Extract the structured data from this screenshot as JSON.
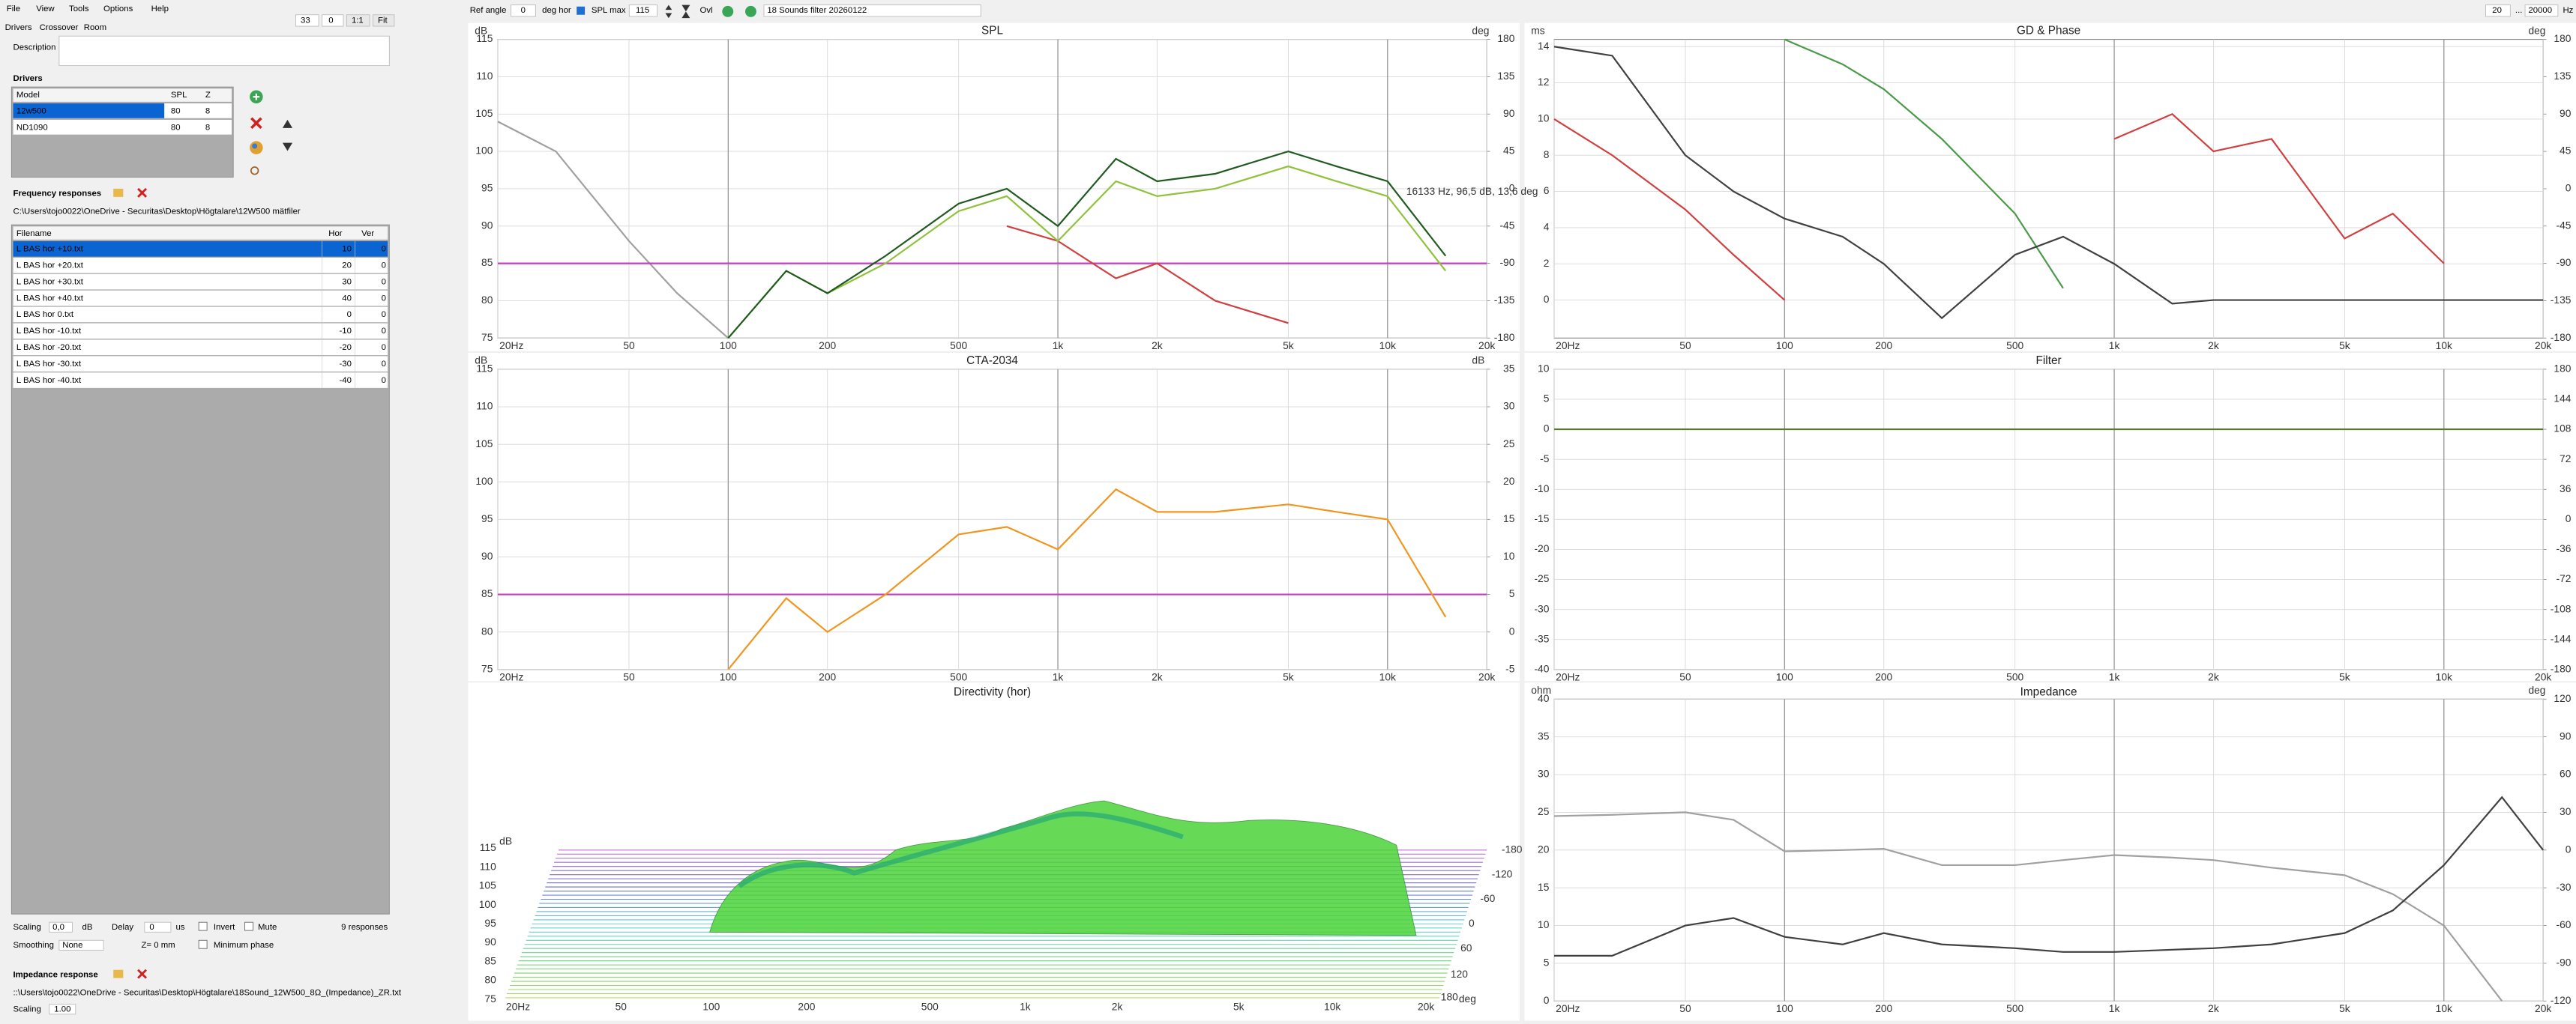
{
  "menu": [
    "File",
    "View",
    "Tools",
    "Options",
    "Help"
  ],
  "toolbar": {
    "zoom": "33",
    "offset": "0",
    "ratio": "1:1",
    "fit": "Fit",
    "ref_angle_label": "Ref angle",
    "ref_angle": "0",
    "deg_hor": "deg hor",
    "spl_max_label": "SPL max",
    "spl_max": "115",
    "ovl": "Ovl",
    "project": "18 Sounds filter 20260122",
    "f_min": "20",
    "f_sep": "...",
    "f_max": "20000",
    "hz": "Hz"
  },
  "tabs": [
    "Drivers",
    "Crossover",
    "Room"
  ],
  "description_label": "Description",
  "drivers": {
    "title": "Drivers",
    "columns": [
      "Model",
      "SPL",
      "Z"
    ],
    "rows": [
      [
        "12w500",
        "80",
        "8"
      ],
      [
        "ND1090",
        "80",
        "8"
      ]
    ]
  },
  "frequency_responses": {
    "title": "Frequency responses",
    "path": "C:\\Users\\tojo0022\\OneDrive - Securitas\\Desktop\\Högtalare\\12W500 mätfiler",
    "columns": [
      "Filename",
      "Hor",
      "Ver"
    ],
    "rows": [
      [
        "L BAS hor +10.txt",
        "10",
        "0"
      ],
      [
        "L BAS hor +20.txt",
        "20",
        "0"
      ],
      [
        "L BAS hor +30.txt",
        "30",
        "0"
      ],
      [
        "L BAS hor +40.txt",
        "40",
        "0"
      ],
      [
        "L BAS hor 0.txt",
        "0",
        "0"
      ],
      [
        "L BAS hor -10.txt",
        "-10",
        "0"
      ],
      [
        "L BAS hor -20.txt",
        "-20",
        "0"
      ],
      [
        "L BAS hor -30.txt",
        "-30",
        "0"
      ],
      [
        "L BAS hor -40.txt",
        "-40",
        "0"
      ]
    ]
  },
  "settings": {
    "scaling_label": "Scaling",
    "scaling": "0,0",
    "db": "dB",
    "delay_label": "Delay",
    "delay": "0",
    "us": "us",
    "invert": "Invert",
    "mute": "Mute",
    "count": "9 responses",
    "smoothing_label": "Smoothing",
    "smoothing": "None",
    "z": "Z= 0 mm",
    "min_phase": "Minimum phase"
  },
  "impedance_response": {
    "title": "Impedance response",
    "path": "::\\Users\\tojo0022\\OneDrive - Securitas\\Desktop\\Högtalare\\18Sound_12W500_8Ω_(Impedance)_ZR.txt",
    "scaling_label": "Scaling",
    "scaling": "1.00"
  },
  "plots": [
    {
      "title": "SPL",
      "unit_left": "dB",
      "unit_right": "deg",
      "annotation": "16133 Hz, 96,5 dB, 13,6 deg",
      "x": [
        20,
        30,
        50,
        70,
        100,
        150,
        200,
        300,
        500,
        700,
        1000,
        1500,
        2000,
        3000,
        5000,
        7000,
        10000,
        15000,
        20000
      ],
      "xlim": [
        20,
        20000
      ],
      "xticks": [
        {
          "value": 20,
          "label": "20Hz"
        },
        50,
        100,
        200,
        500,
        {
          "value": 1000,
          "label": "1k"
        },
        {
          "value": 2000,
          "label": "2k"
        },
        {
          "value": 5000,
          "label": "5k"
        },
        {
          "value": 10000,
          "label": "10k"
        },
        {
          "value": 20000,
          "label": "20k"
        }
      ],
      "ylim": [
        75,
        115
      ],
      "yticks": [
        75,
        80,
        85,
        90,
        95,
        100,
        105,
        110,
        115
      ],
      "y2lim": [
        -180,
        180
      ],
      "y2ticks": [
        -180,
        -135,
        -90,
        -45,
        0,
        45,
        90,
        135,
        180
      ],
      "series": [
        {
          "color": "#a0a0a0",
          "values": [
            104,
            100,
            88,
            81,
            75,
            null,
            null,
            null,
            null,
            null,
            null,
            null,
            null,
            null,
            null,
            null,
            null,
            null,
            null
          ]
        },
        {
          "color": "#c040c0",
          "values": [
            85,
            85,
            85,
            85,
            85,
            85,
            85,
            85,
            85,
            85,
            85,
            85,
            85,
            85,
            85,
            85,
            85,
            85,
            85
          ]
        },
        {
          "color": "#d04040",
          "values": [
            null,
            null,
            null,
            null,
            null,
            null,
            null,
            null,
            null,
            90,
            88,
            83,
            85,
            80,
            77,
            null,
            null,
            null,
            null
          ]
        },
        {
          "color": "#8fc23a",
          "values": [
            null,
            null,
            null,
            null,
            75,
            84,
            81,
            85,
            92,
            94,
            88,
            96,
            94,
            95,
            98,
            96,
            94,
            84,
            null
          ]
        },
        {
          "color": "#1f5a1f",
          "values": [
            null,
            null,
            null,
            null,
            75,
            84,
            81,
            86,
            93,
            95,
            90,
            99,
            96,
            97,
            100,
            98,
            96,
            86,
            null
          ]
        }
      ]
    },
    {
      "title": "GD & Phase",
      "unit_left": "ms",
      "unit_right": "deg",
      "x": [
        20,
        30,
        50,
        70,
        100,
        150,
        200,
        300,
        500,
        700,
        1000,
        1500,
        2000,
        3000,
        5000,
        7000,
        10000,
        15000,
        20000
      ],
      "xlim": [
        20,
        20000
      ],
      "xticks": [
        {
          "value": 20,
          "label": "20Hz"
        },
        50,
        100,
        200,
        500,
        {
          "value": 1000,
          "label": "1k"
        },
        {
          "value": 2000,
          "label": "2k"
        },
        {
          "value": 5000,
          "label": "5k"
        },
        {
          "value": 10000,
          "label": "10k"
        },
        {
          "value": 20000,
          "label": "20k"
        }
      ],
      "ylim": [
        -2.1,
        14.4
      ],
      "yticks": [
        0,
        2,
        4,
        6,
        8,
        10,
        12,
        14
      ],
      "y2lim": [
        -180,
        180
      ],
      "y2ticks": [
        -180,
        -135,
        -90,
        -45,
        0,
        45,
        90,
        135,
        180
      ],
      "series": [
        {
          "color": "#d04040",
          "values": [
            10,
            8,
            5,
            2.5,
            0,
            null,
            null,
            null,
            null,
            null,
            null,
            null,
            null,
            null,
            null,
            null,
            null,
            null,
            null
          ]
        },
        {
          "color": "#d04040",
          "axis": "y2",
          "values": [
            null,
            null,
            null,
            null,
            null,
            null,
            null,
            null,
            null,
            null,
            60,
            90,
            45,
            60,
            -60,
            -30,
            -90,
            null,
            null
          ]
        },
        {
          "color": "#4a9a4a",
          "axis": "y2",
          "values": [
            null,
            null,
            null,
            null,
            180,
            150,
            120,
            60,
            -30,
            -120,
            null,
            null,
            null,
            null,
            null,
            null,
            null,
            null,
            null
          ]
        },
        {
          "color": "#404040",
          "values": [
            14,
            13.5,
            8,
            6,
            4.5,
            3.5,
            2,
            -1,
            2.5,
            3.5,
            2,
            -0.2,
            0,
            0,
            0,
            0,
            0,
            0,
            0
          ]
        }
      ]
    },
    {
      "title": "CTA-2034",
      "unit_left": "dB",
      "unit_right": "dB",
      "x": [
        20,
        30,
        50,
        70,
        100,
        150,
        200,
        300,
        500,
        700,
        1000,
        1500,
        2000,
        3000,
        5000,
        7000,
        10000,
        15000,
        20000
      ],
      "xlim": [
        20,
        20000
      ],
      "xticks": [
        {
          "value": 20,
          "label": "20Hz"
        },
        50,
        100,
        200,
        500,
        {
          "value": 1000,
          "label": "1k"
        },
        {
          "value": 2000,
          "label": "2k"
        },
        {
          "value": 5000,
          "label": "5k"
        },
        {
          "value": 10000,
          "label": "10k"
        },
        {
          "value": 20000,
          "label": "20k"
        }
      ],
      "ylim": [
        75,
        115
      ],
      "yticks": [
        75,
        80,
        85,
        90,
        95,
        100,
        105,
        110,
        115
      ],
      "y2lim": [
        -5,
        35
      ],
      "y2ticks": [
        -5,
        0,
        5,
        10,
        15,
        20,
        25,
        30,
        35
      ],
      "series": [
        {
          "color": "#c040c0",
          "values": [
            85,
            85,
            85,
            85,
            85,
            85,
            85,
            85,
            85,
            85,
            85,
            85,
            85,
            85,
            85,
            85,
            85,
            85,
            85
          ]
        },
        {
          "color": "#f0961e",
          "values": [
            null,
            null,
            null,
            null,
            75,
            84.5,
            80,
            85,
            93,
            94,
            91,
            99,
            96,
            96,
            97,
            96,
            95,
            82,
            null
          ]
        }
      ]
    },
    {
      "title": "Filter",
      "x": [
        20,
        30,
        50,
        70,
        100,
        150,
        200,
        300,
        500,
        700,
        1000,
        1500,
        2000,
        3000,
        5000,
        7000,
        10000,
        15000,
        20000
      ],
      "xlim": [
        20,
        20000
      ],
      "xticks": [
        {
          "value": 20,
          "label": "20Hz"
        },
        50,
        100,
        200,
        500,
        {
          "value": 1000,
          "label": "1k"
        },
        {
          "value": 2000,
          "label": "2k"
        },
        {
          "value": 5000,
          "label": "5k"
        },
        {
          "value": 10000,
          "label": "10k"
        },
        {
          "value": 20000,
          "label": "20k"
        }
      ],
      "ylim": [
        -40,
        10
      ],
      "yticks": [
        -40,
        -35,
        -30,
        -25,
        -20,
        -15,
        -10,
        -5,
        0,
        5,
        10
      ],
      "y2lim": [
        -180,
        180
      ],
      "y2ticks": [
        -180,
        -144,
        -108,
        -72,
        -36,
        0,
        36,
        72,
        108,
        144,
        180
      ],
      "series": [
        {
          "color": "#5a7a2a",
          "values": [
            0,
            0,
            0,
            0,
            0,
            0,
            0,
            0,
            0,
            0,
            0,
            0,
            0,
            0,
            0,
            0,
            0,
            0,
            0
          ]
        }
      ]
    },
    {
      "title": "Impedance",
      "unit_left": "ohm",
      "unit_right": "deg",
      "x": [
        20,
        30,
        50,
        70,
        100,
        150,
        200,
        300,
        500,
        700,
        1000,
        1500,
        2000,
        3000,
        5000,
        7000,
        10000,
        15000,
        20000
      ],
      "xlim": [
        20,
        20000
      ],
      "xticks": [
        {
          "value": 20,
          "label": "20Hz"
        },
        50,
        100,
        200,
        500,
        {
          "value": 1000,
          "label": "1k"
        },
        {
          "value": 2000,
          "label": "2k"
        },
        {
          "value": 5000,
          "label": "5k"
        },
        {
          "value": 10000,
          "label": "10k"
        },
        {
          "value": 20000,
          "label": "20k"
        }
      ],
      "ylim": [
        0,
        40
      ],
      "yticks": [
        0,
        5,
        10,
        15,
        20,
        25,
        30,
        35,
        40
      ],
      "y2lim": [
        -120,
        120
      ],
      "y2ticks": [
        -120,
        -90,
        -60,
        -30,
        0,
        30,
        60,
        90,
        120
      ],
      "series": [
        {
          "color": "#a0a0a0",
          "axis": "y2",
          "values": [
            27,
            28,
            30,
            24,
            -1,
            0,
            1,
            -12,
            -12,
            -8,
            -4,
            -6,
            -8,
            -14,
            -20,
            -35,
            -60,
            -120,
            null
          ]
        },
        {
          "color": "#404040",
          "values": [
            6,
            6,
            10,
            11,
            8.5,
            7.5,
            9,
            7.5,
            7,
            6.5,
            6.5,
            6.8,
            7,
            7.5,
            9,
            12,
            18,
            27,
            20
          ]
        }
      ]
    }
  ],
  "directivity": {
    "title": "Directivity (hor)",
    "unit": "dB",
    "yticks": [
      "115",
      "110",
      "105",
      "100",
      "95",
      "90",
      "85",
      "80",
      "75"
    ],
    "xticks": [
      "20Hz",
      "50",
      "100",
      "200",
      "500",
      "1k",
      "2k",
      "5k",
      "10k",
      "20k"
    ],
    "angles": [
      "-180",
      "-120",
      "-60",
      "0",
      "60",
      "120",
      "180"
    ],
    "angle_unit": "deg"
  }
}
